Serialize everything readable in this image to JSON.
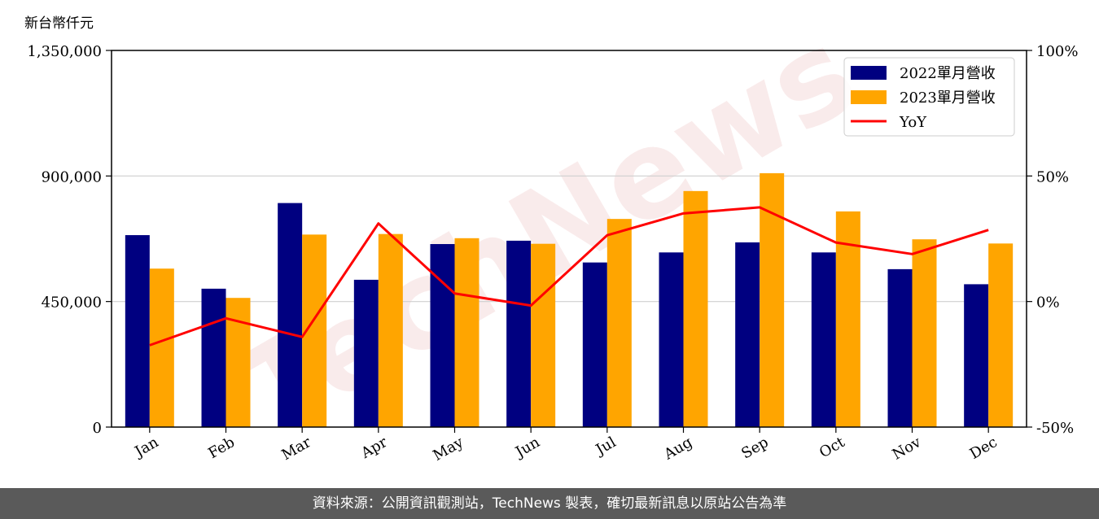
{
  "unit_label": "新台幣仟元",
  "watermark": "TechNews",
  "footer": "資料來源：公開資訊觀測站，TechNews 製表，確切最新訊息以原站公告為準",
  "colors": {
    "series2022": "#000080",
    "series2023": "#FFA500",
    "yoy": "#FF0000"
  },
  "chart_data": {
    "type": "bar",
    "categories": [
      "Jan",
      "Feb",
      "Mar",
      "Apr",
      "May",
      "Jun",
      "Jul",
      "Aug",
      "Sep",
      "Oct",
      "Nov",
      "Dec"
    ],
    "series": [
      {
        "name": "2022單月營收",
        "type": "bar",
        "axis": "left",
        "values": [
          688000,
          496000,
          803000,
          528000,
          656000,
          668000,
          590000,
          626000,
          662000,
          626000,
          566000,
          512000
        ]
      },
      {
        "name": "2023單月營收",
        "type": "bar",
        "axis": "left",
        "values": [
          568000,
          463000,
          690000,
          692000,
          677000,
          657000,
          746000,
          846000,
          910000,
          773000,
          673000,
          658000
        ]
      },
      {
        "name": "YoY",
        "type": "line",
        "axis": "right",
        "values": [
          -17.4,
          -6.7,
          -14.1,
          31.1,
          3.2,
          -1.6,
          26.4,
          35.1,
          37.5,
          23.5,
          18.9,
          28.5
        ]
      }
    ],
    "ylim": [
      0,
      1350000
    ],
    "yticks": [
      "0",
      "450,000",
      "900,000",
      "1,350,000"
    ],
    "y2lim": [
      -50,
      100
    ],
    "y2ticks": [
      "-50%",
      "0%",
      "50%",
      "100%"
    ],
    "grid": "horizontal",
    "legend_position": "top-right"
  }
}
